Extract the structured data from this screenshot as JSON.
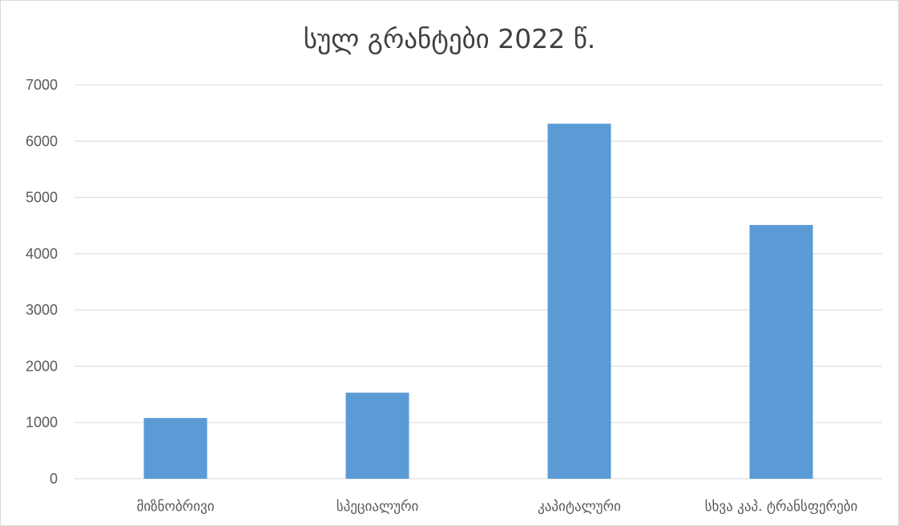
{
  "chart_data": {
    "type": "bar",
    "title": "სულ გრანტები 2022 წ.",
    "categories": [
      "მიზნობრივი",
      "სპეციალური",
      "კაპიტალური",
      "სხვა კაპ. ტრანსფერები"
    ],
    "values": [
      1080,
      1530,
      6310,
      4510
    ],
    "ylim": [
      0,
      7000
    ],
    "yticks": [
      0,
      1000,
      2000,
      3000,
      4000,
      5000,
      6000,
      7000
    ],
    "xlabel": "",
    "ylabel": "",
    "grid": true,
    "legend": "none",
    "colors": {
      "bar": "#5b9bd5",
      "grid": "#d9d9d9",
      "text": "#595959",
      "title": "#404040"
    }
  }
}
